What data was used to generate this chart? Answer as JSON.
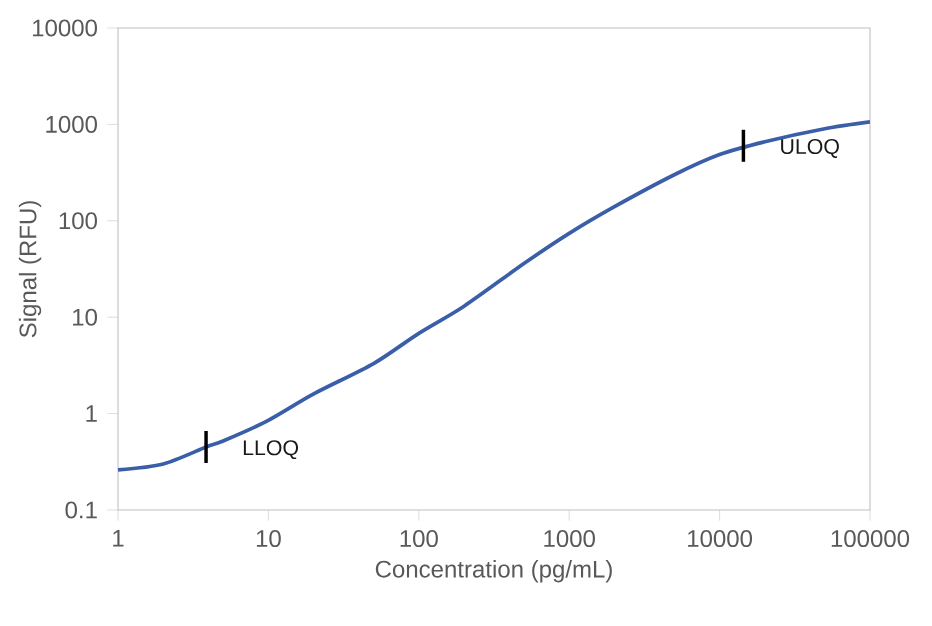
{
  "chart_data": {
    "type": "line",
    "xlabel": "Concentration (pg/mL)",
    "ylabel": "Signal (RFU)",
    "log": "xy",
    "xlim": [
      1,
      100000
    ],
    "ylim": [
      0.1,
      10000
    ],
    "xticks": [
      1,
      10,
      100,
      1000,
      10000,
      100000
    ],
    "yticks": [
      0.1,
      1,
      10,
      100,
      1000,
      10000
    ],
    "marker": "none",
    "line_style": "solid",
    "series": [
      {
        "color": "#3a5ea8",
        "x": [
          1,
          2,
          3.85,
          5,
          9.7,
          20,
          50,
          100,
          200,
          500,
          1000,
          2000,
          5000,
          10000,
          20000,
          50000,
          100000
        ],
        "values": [
          0.26,
          0.3,
          0.45,
          0.52,
          0.83,
          1.6,
          3.3,
          6.8,
          13,
          36,
          74,
          140,
          300,
          486,
          660,
          900,
          1060
        ]
      }
    ],
    "annotations": [
      {
        "text": "LLOQ",
        "x": 3.85,
        "y": 0.45
      },
      {
        "text": "ULOQ",
        "x": 14400,
        "y": 600
      }
    ]
  }
}
